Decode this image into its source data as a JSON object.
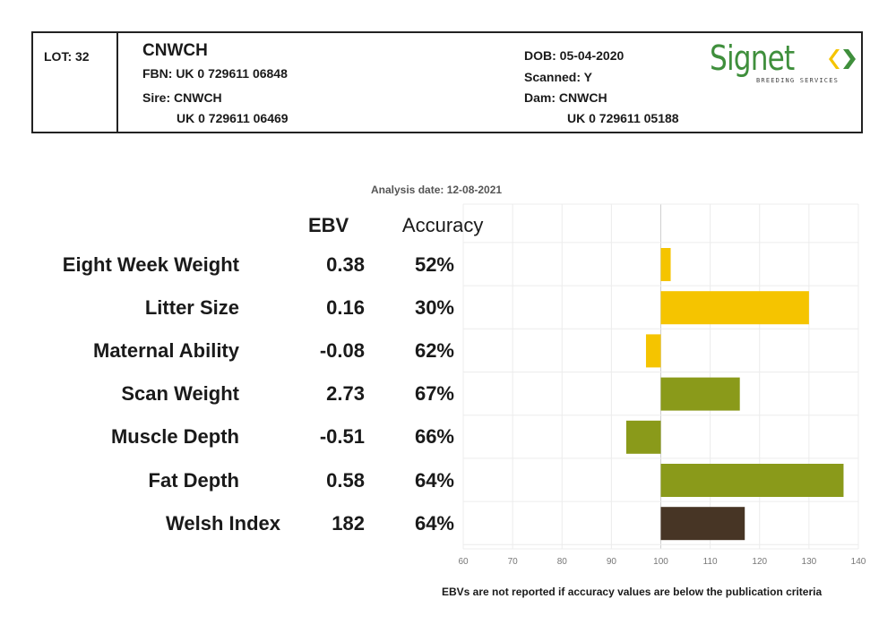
{
  "header": {
    "lot": "LOT: 32",
    "name": "CNWCH",
    "fbn": "FBN: UK 0 729611 06848",
    "sire": "Sire: CNWCH",
    "sire_id": "UK 0 729611 06469",
    "dob": "DOB: 05-04-2020",
    "scanned": "Scanned: Y",
    "dam": "Dam: CNWCH",
    "dam_id": "UK 0 729611 05188",
    "logo_text": "Signet",
    "logo_sub": "BREEDING SERVICES"
  },
  "analysis_date": "Analysis date: 12-08-2021",
  "columns": {
    "ebv": "EBV",
    "accuracy": "Accuracy"
  },
  "footnote": "EBVs are not reported if accuracy values are below the publication criteria",
  "colors": {
    "yellow": "#f5c400",
    "olive": "#8a9a1a",
    "brown": "#473525",
    "logo_green": "#3f8f3c"
  },
  "chart_data": {
    "type": "bar",
    "orientation": "horizontal",
    "baseline": 100,
    "xlim": [
      60,
      140
    ],
    "xticks": [
      60,
      70,
      80,
      90,
      100,
      110,
      120,
      130,
      140
    ],
    "grid": true,
    "rows": [
      {
        "trait": "Eight Week Weight",
        "ebv": "0.38",
        "accuracy": "52%",
        "value": 102,
        "color": "#f5c400"
      },
      {
        "trait": "Litter Size",
        "ebv": "0.16",
        "accuracy": "30%",
        "value": 130,
        "color": "#f5c400"
      },
      {
        "trait": "Maternal Ability",
        "ebv": "-0.08",
        "accuracy": "62%",
        "value": 97,
        "color": "#f5c400"
      },
      {
        "trait": "Scan Weight",
        "ebv": "2.73",
        "accuracy": "67%",
        "value": 116,
        "color": "#8a9a1a"
      },
      {
        "trait": "Muscle Depth",
        "ebv": "-0.51",
        "accuracy": "66%",
        "value": 93,
        "color": "#8a9a1a"
      },
      {
        "trait": "Fat Depth",
        "ebv": "0.58",
        "accuracy": "64%",
        "value": 137,
        "color": "#8a9a1a"
      },
      {
        "trait": "Welsh Index",
        "ebv": "182",
        "accuracy": "64%",
        "value": 117,
        "color": "#473525"
      }
    ]
  }
}
